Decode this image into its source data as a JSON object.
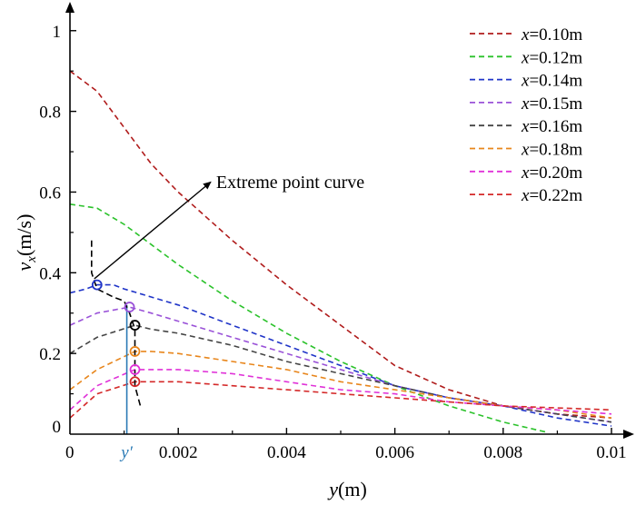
{
  "chart_data": {
    "type": "line",
    "x_axis": {
      "label_var": "y",
      "label_unit": "(m)",
      "lim": [
        0,
        0.01
      ],
      "ticks": [
        {
          "value": 0,
          "label": "0"
        },
        {
          "value": 0.002,
          "label": "0.002"
        },
        {
          "value": 0.004,
          "label": "0.004"
        },
        {
          "value": 0.006,
          "label": "0.006"
        },
        {
          "value": 0.008,
          "label": "0.008"
        },
        {
          "value": 0.01,
          "label": "0.01"
        }
      ]
    },
    "y_axis": {
      "label_var": "v",
      "label_sub": "x",
      "label_unit": "(m/s)",
      "lim": [
        0,
        1.04
      ],
      "ticks": [
        {
          "value": 0,
          "label": "0"
        },
        {
          "value": 0.2,
          "label": "0.2"
        },
        {
          "value": 0.4,
          "label": "0.4"
        },
        {
          "value": 0.6,
          "label": "0.6"
        },
        {
          "value": 0.8,
          "label": "0.8"
        },
        {
          "value": 1.0,
          "label": "1"
        }
      ]
    },
    "grid": false,
    "legend_position": "top-right",
    "series": [
      {
        "name": "x=0.10m",
        "name_var": "x",
        "name_rest": "=0.10m",
        "color": "#b01c1c",
        "x": [
          0,
          0.0005,
          0.001,
          0.0015,
          0.002,
          0.003,
          0.004,
          0.005,
          0.006,
          0.007,
          0.008,
          0.009,
          0.01
        ],
        "y": [
          0.9,
          0.85,
          0.76,
          0.67,
          0.6,
          0.48,
          0.37,
          0.27,
          0.17,
          0.11,
          0.07,
          0.05,
          0.04
        ]
      },
      {
        "name": "x=0.12m",
        "name_var": "x",
        "name_rest": "=0.12m",
        "color": "#2bc22b",
        "x": [
          0,
          0.0005,
          0.001,
          0.0015,
          0.002,
          0.003,
          0.004,
          0.005,
          0.006,
          0.007,
          0.008,
          0.0088
        ],
        "y": [
          0.57,
          0.56,
          0.52,
          0.47,
          0.42,
          0.33,
          0.25,
          0.18,
          0.12,
          0.07,
          0.03,
          0.005
        ]
      },
      {
        "name": "x=0.14m",
        "name_var": "x",
        "name_rest": "=0.14m",
        "color": "#2035c8",
        "x": [
          0,
          0.0003,
          0.0005,
          0.0008,
          0.001,
          0.0015,
          0.002,
          0.003,
          0.004,
          0.005,
          0.006,
          0.007,
          0.008,
          0.009,
          0.01
        ],
        "y": [
          0.35,
          0.36,
          0.37,
          0.37,
          0.36,
          0.34,
          0.32,
          0.27,
          0.22,
          0.17,
          0.12,
          0.09,
          0.07,
          0.04,
          0.02
        ]
      },
      {
        "name": "x=0.15m",
        "name_var": "x",
        "name_rest": "=0.15m",
        "color": "#9a52d8",
        "x": [
          0,
          0.0005,
          0.0011,
          0.0015,
          0.002,
          0.003,
          0.004,
          0.005,
          0.006,
          0.007,
          0.008,
          0.009,
          0.01
        ],
        "y": [
          0.27,
          0.3,
          0.315,
          0.3,
          0.28,
          0.24,
          0.2,
          0.16,
          0.12,
          0.09,
          0.07,
          0.05,
          0.03
        ]
      },
      {
        "name": "x=0.16m",
        "name_var": "x",
        "name_rest": "=0.16m",
        "color": "#454545",
        "x": [
          0,
          0.0005,
          0.0012,
          0.0015,
          0.002,
          0.003,
          0.004,
          0.005,
          0.006,
          0.007,
          0.008,
          0.009,
          0.01
        ],
        "y": [
          0.2,
          0.24,
          0.27,
          0.26,
          0.25,
          0.22,
          0.18,
          0.15,
          0.12,
          0.09,
          0.07,
          0.05,
          0.03
        ]
      },
      {
        "name": "x=0.18m",
        "name_var": "x",
        "name_rest": "=0.18m",
        "color": "#e8861c",
        "x": [
          0,
          0.0005,
          0.0012,
          0.0015,
          0.002,
          0.003,
          0.004,
          0.005,
          0.006,
          0.007,
          0.008,
          0.009,
          0.01
        ],
        "y": [
          0.11,
          0.16,
          0.205,
          0.205,
          0.2,
          0.18,
          0.16,
          0.13,
          0.11,
          0.09,
          0.07,
          0.06,
          0.04
        ]
      },
      {
        "name": "x=0.20m",
        "name_var": "x",
        "name_rest": "=0.20m",
        "color": "#e032d8",
        "x": [
          0,
          0.0005,
          0.0012,
          0.0015,
          0.002,
          0.003,
          0.004,
          0.005,
          0.006,
          0.007,
          0.008,
          0.009,
          0.01
        ],
        "y": [
          0.06,
          0.12,
          0.16,
          0.16,
          0.16,
          0.15,
          0.13,
          0.11,
          0.1,
          0.08,
          0.07,
          0.06,
          0.05
        ]
      },
      {
        "name": "x=0.22m",
        "name_var": "x",
        "name_rest": "=0.22m",
        "color": "#d42828",
        "x": [
          0,
          0.0005,
          0.0012,
          0.0015,
          0.002,
          0.003,
          0.004,
          0.005,
          0.006,
          0.007,
          0.008,
          0.009,
          0.01
        ],
        "y": [
          0.04,
          0.1,
          0.13,
          0.13,
          0.13,
          0.12,
          0.11,
          0.1,
          0.09,
          0.08,
          0.07,
          0.065,
          0.06
        ]
      }
    ],
    "extreme_points": [
      {
        "x": 0.0005,
        "y": 0.37,
        "color": "#2035c8"
      },
      {
        "x": 0.0011,
        "y": 0.315,
        "color": "#9a52d8"
      },
      {
        "x": 0.0012,
        "y": 0.27,
        "color": "#000000"
      },
      {
        "x": 0.0012,
        "y": 0.205,
        "color": "#e8861c"
      },
      {
        "x": 0.0012,
        "y": 0.16,
        "color": "#e032d8"
      },
      {
        "x": 0.0012,
        "y": 0.13,
        "color": "#d42828"
      }
    ],
    "extreme_curve": {
      "color": "#000000",
      "x": [
        0.0004,
        0.0004,
        0.0005,
        0.0008,
        0.001,
        0.0011,
        0.0012,
        0.0012,
        0.0012,
        0.0012,
        0.0013
      ],
      "y": [
        0.48,
        0.4,
        0.36,
        0.34,
        0.33,
        0.3,
        0.26,
        0.2,
        0.15,
        0.12,
        0.07
      ]
    },
    "annotation": {
      "text": "Extreme point curve",
      "text_x": 0.0027,
      "text_y": 0.61,
      "arrow_from": [
        0.00045,
        0.385
      ],
      "arrow_to": [
        0.0026,
        0.625
      ]
    },
    "marker_line": {
      "label": "y′",
      "x": 0.00105,
      "y_top": 0.32,
      "color": "#2a7ab5"
    }
  }
}
